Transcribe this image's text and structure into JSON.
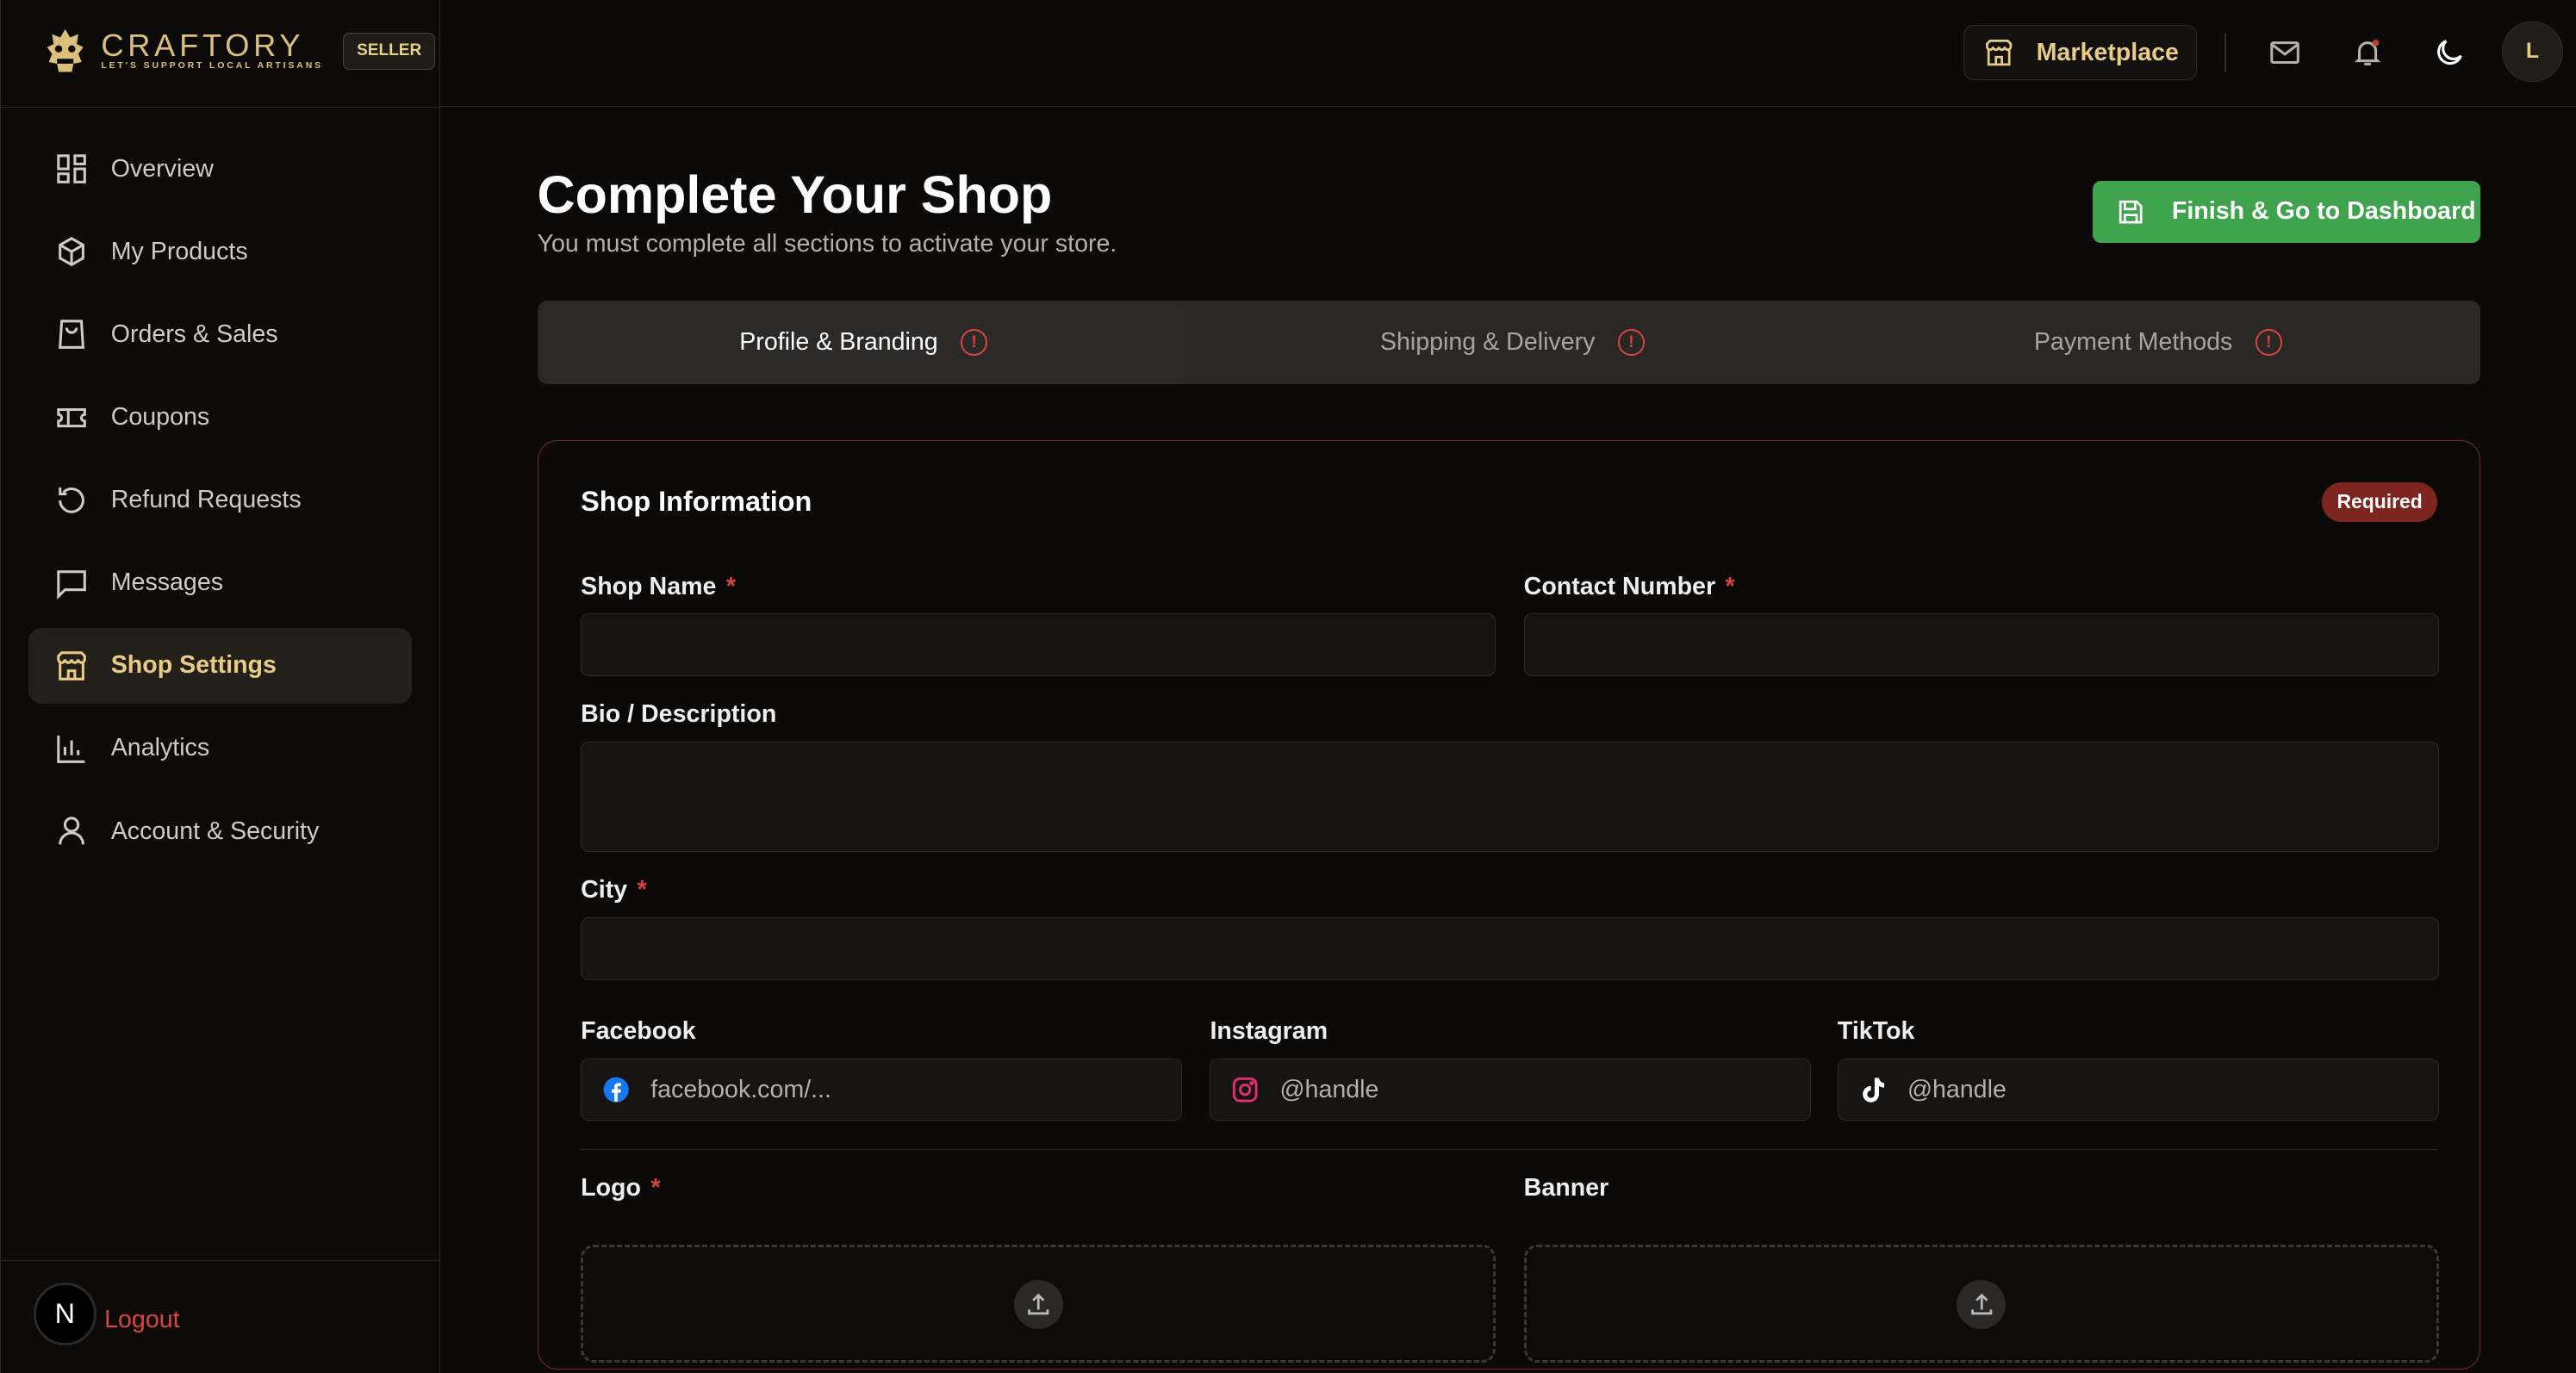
{
  "brand": {
    "name": "CRAFTORY",
    "tagline": "LET'S SUPPORT LOCAL ARTISANS",
    "role_badge": "SELLER",
    "color": "#dcbf7a"
  },
  "sidebar": {
    "items": [
      {
        "label": "Overview",
        "icon": "grid-icon"
      },
      {
        "label": "My Products",
        "icon": "box-icon"
      },
      {
        "label": "Orders & Sales",
        "icon": "shopping-bag-icon"
      },
      {
        "label": "Coupons",
        "icon": "ticket-icon"
      },
      {
        "label": "Refund Requests",
        "icon": "refresh-icon"
      },
      {
        "label": "Messages",
        "icon": "message-icon"
      },
      {
        "label": "Shop Settings",
        "icon": "store-icon",
        "active": true
      },
      {
        "label": "Analytics",
        "icon": "bar-chart-icon"
      },
      {
        "label": "Account & Security",
        "icon": "user-icon"
      }
    ],
    "avatar_letter": "N",
    "logout": "Logout"
  },
  "header": {
    "marketplace": "Marketplace",
    "user_initial": "L",
    "notification_dot": true
  },
  "page": {
    "title": "Complete Your Shop",
    "subtitle": "You must complete all sections to activate your store.",
    "finish_button": "Finish & Go to Dashboard",
    "accent": "#3fa34d"
  },
  "tabs": [
    {
      "label": "Profile & Branding",
      "active": true
    },
    {
      "label": "Shipping & Delivery"
    },
    {
      "label": "Payment Methods"
    }
  ],
  "card": {
    "title": "Shop Information",
    "badge": "Required",
    "fields": {
      "shop_name": {
        "label": "Shop Name",
        "value": ""
      },
      "contact": {
        "label": "Contact Number",
        "value": ""
      },
      "bio": {
        "label": "Bio / Description",
        "value": ""
      },
      "city": {
        "label": "City",
        "value": ""
      },
      "facebook": {
        "label": "Facebook",
        "placeholder": "facebook.com/..."
      },
      "instagram": {
        "label": "Instagram",
        "placeholder": "@handle"
      },
      "tiktok": {
        "label": "TikTok",
        "placeholder": "@handle"
      },
      "logo": {
        "label": "Logo"
      },
      "banner": {
        "label": "Banner"
      }
    },
    "required_mark": "*"
  }
}
